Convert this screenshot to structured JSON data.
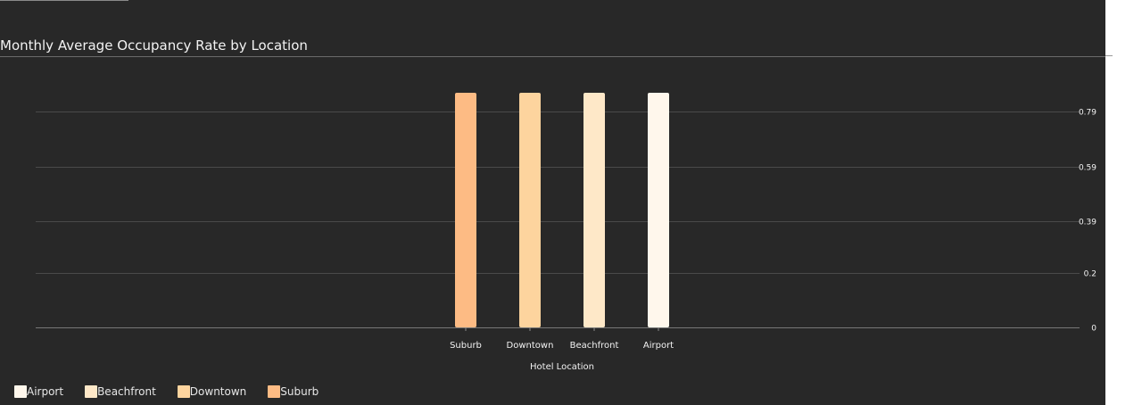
{
  "chart_data": {
    "type": "bar",
    "title": "Monthly Average Occupancy Rate by Location",
    "xlabel": "Hotel Location",
    "ylabel": "",
    "categories": [
      "Suburb",
      "Downtown",
      "Beachfront",
      "Airport"
    ],
    "values": [
      0.86,
      0.86,
      0.86,
      0.86
    ],
    "yticks": [
      0,
      0.2,
      0.39,
      0.59,
      0.79
    ],
    "ylim": [
      0,
      0.86
    ],
    "grid": true,
    "y_axis_side": "right",
    "legend": {
      "placement": "bottom-left",
      "entries": [
        "Airport",
        "Beachfront",
        "Downtown",
        "Suburb"
      ]
    },
    "colors": {
      "Suburb": "#fdbb84",
      "Downtown": "#fdd49e",
      "Beachfront": "#fee8c8",
      "Airport": "#fff7ec"
    }
  },
  "theme": {
    "background": "#282828",
    "grid": "#4a4a4a",
    "text": "#f2f2f2"
  }
}
